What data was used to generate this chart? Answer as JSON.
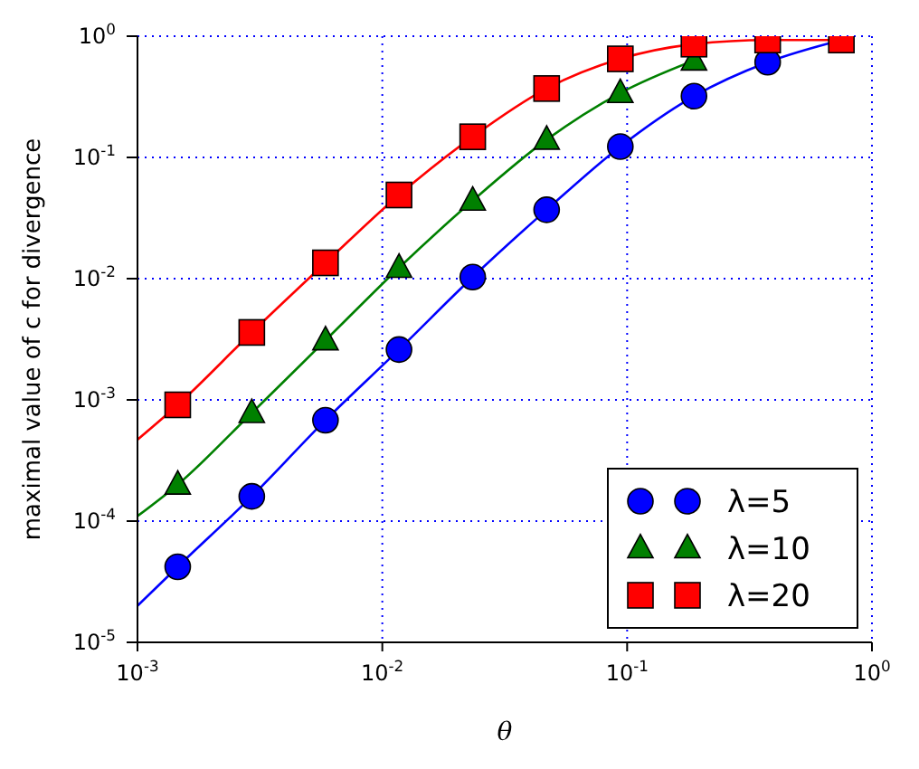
{
  "chart_data": {
    "type": "line",
    "xlabel": "θ",
    "ylabel": "maximal value of c for divergence",
    "log": "xy",
    "grid": true,
    "line_style": "dotted",
    "legend": "bottom right",
    "xlim": [
      0.001,
      1
    ],
    "ylim": [
      1e-05,
      1
    ],
    "xticks": [
      {
        "value": 0.001,
        "label": "10$^{-3}$"
      },
      {
        "value": 0.01,
        "label": "10$^{-2}$"
      },
      {
        "value": 0.1,
        "label": "10$^{-1}$"
      },
      {
        "value": 1,
        "label": "10$^{0}$"
      }
    ],
    "yticks": [
      {
        "value": 1e-05,
        "label": "10$^{-5}$"
      },
      {
        "value": 0.0001,
        "label": "10$^{-4}$"
      },
      {
        "value": 0.001,
        "label": "10$^{-3}$"
      },
      {
        "value": 0.01,
        "label": "10$^{-2}$"
      },
      {
        "value": 0.1,
        "label": "10$^{-1}$"
      },
      {
        "value": 1,
        "label": "10$^{0}$"
      }
    ],
    "series": [
      {
        "color": "#0000ff",
        "marker": "none",
        "line_style": "solid",
        "x": [
          0.001,
          0.00146,
          0.00293,
          0.00586,
          0.0117,
          0.0234,
          0.0469,
          0.0938,
          0.1875,
          0.375,
          0.75
        ],
        "values": [
          2e-05,
          4.2e-05,
          0.00016,
          0.00068,
          0.0026,
          0.0103,
          0.037,
          0.123,
          0.32,
          0.61,
          0.93
        ]
      },
      {
        "color": "#008000",
        "marker": "none",
        "line_style": "solid",
        "x": [
          0.001,
          0.00146,
          0.00293,
          0.00586,
          0.0117,
          0.0234,
          0.0469,
          0.0938,
          0.1875
        ],
        "values": [
          0.00011,
          0.0002,
          0.00078,
          0.0031,
          0.0123,
          0.044,
          0.14,
          0.34,
          0.63
        ]
      },
      {
        "color": "#ff0000",
        "marker": "none",
        "line_style": "solid",
        "x": [
          0.001,
          0.00146,
          0.00293,
          0.00586,
          0.0117,
          0.0234,
          0.0469,
          0.0938,
          0.1875,
          0.375,
          0.75
        ],
        "values": [
          0.00047,
          0.00091,
          0.0036,
          0.0135,
          0.049,
          0.148,
          0.37,
          0.65,
          0.86,
          0.93,
          0.93
        ]
      },
      {
        "type": "scatter",
        "name": "λ=5",
        "color": "#0000ff",
        "marker": "circle",
        "x": [
          0.00146,
          0.00293,
          0.00586,
          0.0117,
          0.0234,
          0.0469,
          0.0938,
          0.1875,
          0.375
        ],
        "values": [
          4.2e-05,
          0.00016,
          0.00068,
          0.0026,
          0.0103,
          0.037,
          0.123,
          0.32,
          0.61
        ]
      },
      {
        "type": "scatter",
        "name": "λ=10",
        "color": "#008000",
        "marker": "triangle",
        "x": [
          0.00146,
          0.00293,
          0.00586,
          0.0117,
          0.0234,
          0.0469,
          0.0938,
          0.1875
        ],
        "values": [
          0.0002,
          0.00078,
          0.0031,
          0.0123,
          0.044,
          0.14,
          0.34,
          0.63
        ]
      },
      {
        "type": "scatter",
        "name": "λ=20",
        "color": "#ff0000",
        "marker": "square",
        "x": [
          0.00146,
          0.00293,
          0.00586,
          0.0117,
          0.0234,
          0.0469,
          0.0938,
          0.1875,
          0.375,
          0.75
        ],
        "values": [
          0.00091,
          0.0036,
          0.0135,
          0.049,
          0.148,
          0.37,
          0.65,
          0.86,
          0.93,
          0.93
        ]
      }
    ]
  }
}
